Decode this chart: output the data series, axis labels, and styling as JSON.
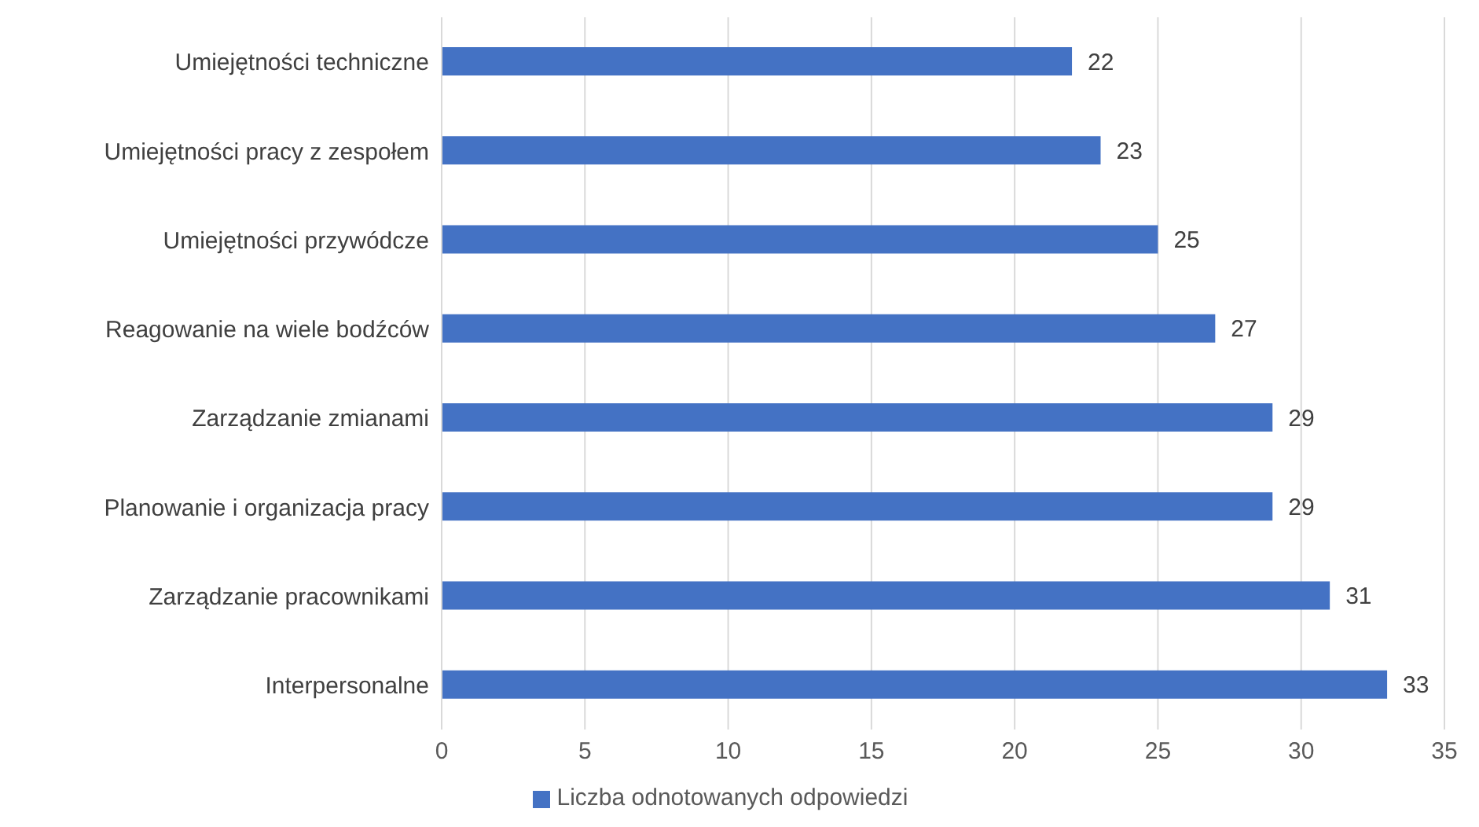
{
  "chart_data": {
    "type": "bar",
    "orientation": "horizontal",
    "categories": [
      "Umiejętności techniczne",
      "Umiejętności pracy z zespołem",
      "Umiejętności przywódcze",
      "Reagowanie na wiele bodźców",
      "Zarządzanie zmianami",
      "Planowanie i organizacja pracy",
      "Zarządzanie pracownikami",
      "Interpersonalne"
    ],
    "series": [
      {
        "name": "Liczba odnotowanych odpowiedzi",
        "color": "#4472c4",
        "values": [
          22,
          23,
          25,
          27,
          29,
          29,
          31,
          33
        ]
      }
    ],
    "xlim": [
      0,
      35
    ],
    "xticks": [
      0,
      5,
      10,
      15,
      20,
      25,
      30,
      35
    ],
    "grid": "x",
    "legend": "bottom",
    "data_labels": true
  }
}
